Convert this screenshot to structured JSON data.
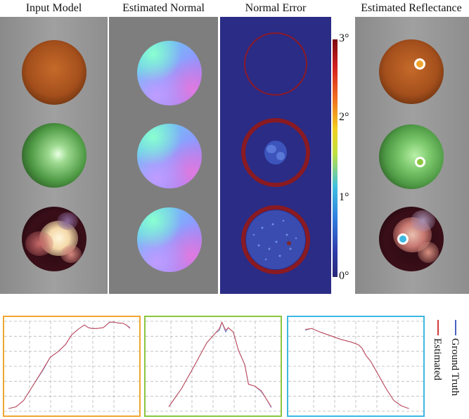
{
  "columns": {
    "input_model": "Input Model",
    "estimated_normal": "Estimated Normal",
    "normal_error": "Normal Error",
    "estimated_reflectance": "Estimated Reflectance"
  },
  "colorbar": {
    "max_label": "3°",
    "tick2_label": "2°",
    "tick1_label": "1°",
    "min_label": "0°"
  },
  "legend": {
    "ground_truth": "Ground Truth",
    "estimated": "Estimated"
  },
  "colors": {
    "orange_frame": "#f0a530",
    "green_frame": "#8cc63e",
    "blue_frame": "#3cb8e0",
    "ground_truth": "#4a62c4",
    "estimated": "#d43a3a"
  },
  "chart_data": [
    {
      "type": "line",
      "frame": "orange",
      "series": [
        {
          "name": "Ground Truth",
          "x": [
            0,
            0.06,
            0.12,
            0.2,
            0.27,
            0.33,
            0.39,
            0.45,
            0.5,
            0.55,
            0.6,
            0.63,
            0.66,
            0.7,
            0.75,
            0.8,
            0.84,
            0.87,
            0.9,
            0.93,
            0.96
          ],
          "y": [
            0.03,
            0.05,
            0.12,
            0.3,
            0.45,
            0.6,
            0.66,
            0.74,
            0.85,
            0.91,
            0.96,
            0.93,
            0.92,
            0.92,
            0.93,
            0.99,
            0.99,
            0.98,
            0.98,
            0.96,
            0.93
          ]
        },
        {
          "name": "Estimated",
          "x": [
            0,
            0.06,
            0.12,
            0.2,
            0.27,
            0.33,
            0.39,
            0.45,
            0.5,
            0.55,
            0.6,
            0.63,
            0.66,
            0.7,
            0.75,
            0.8,
            0.84,
            0.87,
            0.9,
            0.93,
            0.96
          ],
          "y": [
            0.03,
            0.05,
            0.12,
            0.3,
            0.46,
            0.6,
            0.66,
            0.74,
            0.85,
            0.91,
            0.96,
            0.93,
            0.92,
            0.92,
            0.93,
            0.99,
            0.99,
            0.98,
            0.98,
            0.96,
            0.92
          ]
        }
      ]
    },
    {
      "type": "line",
      "frame": "green",
      "series": [
        {
          "name": "Ground Truth",
          "x": [
            0.15,
            0.25,
            0.35,
            0.45,
            0.52,
            0.55,
            0.57,
            0.6,
            0.62,
            0.66,
            0.7,
            0.75,
            0.78,
            0.83,
            0.88,
            0.92,
            0.96
          ],
          "y": [
            0.05,
            0.25,
            0.5,
            0.76,
            0.87,
            0.9,
            0.99,
            0.88,
            0.93,
            0.88,
            0.68,
            0.52,
            0.3,
            0.28,
            0.22,
            0.14,
            0.04
          ]
        },
        {
          "name": "Estimated",
          "x": [
            0.15,
            0.25,
            0.35,
            0.45,
            0.52,
            0.55,
            0.57,
            0.6,
            0.62,
            0.66,
            0.7,
            0.75,
            0.78,
            0.83,
            0.88,
            0.92,
            0.96
          ],
          "y": [
            0.05,
            0.25,
            0.5,
            0.76,
            0.87,
            0.92,
            0.99,
            0.9,
            0.93,
            0.88,
            0.68,
            0.52,
            0.3,
            0.28,
            0.23,
            0.14,
            0.05
          ]
        }
      ]
    },
    {
      "type": "line",
      "frame": "blue",
      "series": [
        {
          "name": "Ground Truth",
          "x": [
            0.1,
            0.15,
            0.22,
            0.3,
            0.38,
            0.46,
            0.52,
            0.55,
            0.58,
            0.62,
            0.68,
            0.74,
            0.8,
            0.86,
            0.92
          ],
          "y": [
            0.9,
            0.92,
            0.88,
            0.84,
            0.8,
            0.77,
            0.74,
            0.7,
            0.62,
            0.55,
            0.4,
            0.25,
            0.12,
            0.06,
            0.03
          ]
        },
        {
          "name": "Estimated",
          "x": [
            0.1,
            0.15,
            0.22,
            0.3,
            0.38,
            0.46,
            0.52,
            0.55,
            0.58,
            0.62,
            0.68,
            0.74,
            0.8,
            0.86,
            0.92
          ],
          "y": [
            0.91,
            0.92,
            0.88,
            0.84,
            0.8,
            0.77,
            0.74,
            0.7,
            0.62,
            0.55,
            0.4,
            0.25,
            0.12,
            0.06,
            0.03
          ]
        }
      ]
    }
  ]
}
